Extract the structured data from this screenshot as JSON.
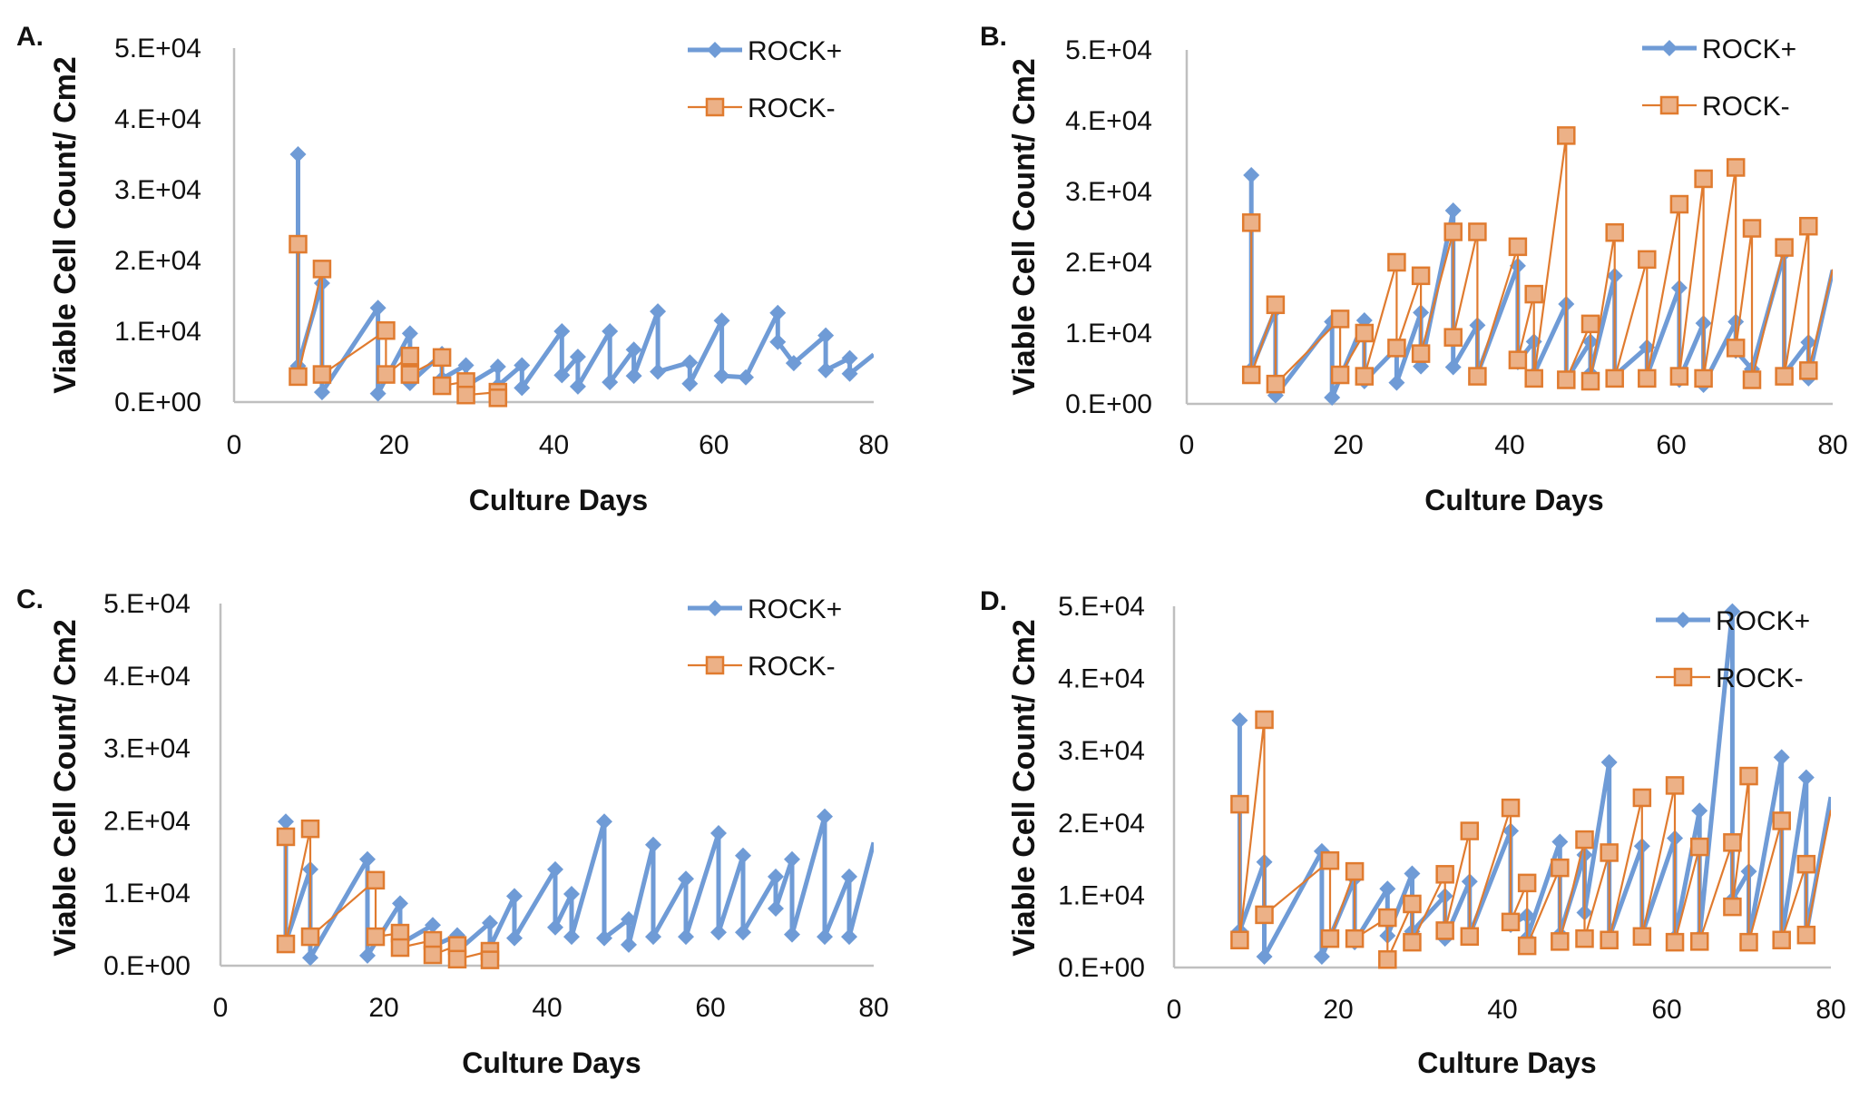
{
  "figure": {
    "colors": {
      "rock_plus": "#6f9bd6",
      "rock_minus": "#e07b2f",
      "rock_minus_fill": "#ecb187",
      "axis": "#bfbfbf"
    }
  },
  "chart_data": [
    {
      "type": "line",
      "panel": "A.",
      "title": "",
      "xlabel": "Culture Days",
      "ylabel": "Viable Cell Count/ Cm2",
      "xlim": [
        0,
        80
      ],
      "ylim": [
        0,
        50000
      ],
      "xticks": [
        "0",
        "20",
        "40",
        "60",
        "80"
      ],
      "yticks": [
        "0.E+00",
        "1.E+04",
        "2.E+04",
        "3.E+04",
        "4.E+04",
        "5.E+04"
      ],
      "grid": false,
      "legend": {
        "position": "top-right",
        "entries": [
          "ROCK+",
          "ROCK-"
        ]
      },
      "series": [
        {
          "name": "ROCK+",
          "marker": "diamond",
          "x": [
            8,
            8,
            11,
            11,
            18,
            18,
            22,
            22,
            26,
            26,
            29,
            29,
            33,
            33,
            36,
            36,
            41,
            41,
            43,
            43,
            47,
            47,
            50,
            50,
            53,
            53,
            57,
            57,
            61,
            61,
            64,
            68,
            68,
            70,
            74,
            74,
            77,
            77,
            80
          ],
          "y": [
            35000,
            5100,
            16800,
            1400,
            13300,
            1200,
            9700,
            2700,
            6800,
            3300,
            5200,
            2300,
            5000,
            2300,
            5200,
            2000,
            10000,
            3800,
            6400,
            2200,
            10000,
            2800,
            7400,
            3700,
            12800,
            4300,
            5600,
            2600,
            11500,
            3700,
            3500,
            12600,
            8500,
            5500,
            9400,
            4500,
            6200,
            4000,
            6700
          ]
        },
        {
          "name": "ROCK-",
          "marker": "square",
          "x": [
            8,
            8,
            11,
            11,
            19,
            19,
            22,
            22,
            26,
            26,
            29,
            29,
            33,
            33
          ],
          "y": [
            22300,
            3600,
            18800,
            3900,
            10100,
            3900,
            6500,
            3900,
            6300,
            2300,
            2900,
            1000,
            1400,
            600
          ]
        }
      ]
    },
    {
      "type": "line",
      "panel": "B.",
      "title": "",
      "xlabel": "Culture Days",
      "ylabel": "Viable Cell Count/ Cm2",
      "xlim": [
        0,
        80
      ],
      "ylim": [
        0,
        50000
      ],
      "xticks": [
        "0",
        "20",
        "40",
        "60",
        "80"
      ],
      "yticks": [
        "0.E+00",
        "1.E+04",
        "2.E+04",
        "3.E+04",
        "4.E+04",
        "5.E+04"
      ],
      "grid": false,
      "legend": {
        "position": "top-right",
        "entries": [
          "ROCK+",
          "ROCK-"
        ]
      },
      "series": [
        {
          "name": "ROCK+",
          "marker": "diamond",
          "x": [
            8,
            8,
            11,
            11,
            18,
            18,
            22,
            22,
            26,
            26,
            29,
            29,
            33,
            33,
            36,
            36,
            41,
            41,
            43,
            43,
            47,
            47,
            50,
            50,
            53,
            53,
            57,
            57,
            61,
            61,
            64,
            64,
            68,
            68,
            70,
            74,
            74,
            77,
            77,
            80
          ],
          "y": [
            32300,
            4900,
            13300,
            1200,
            11600,
            900,
            11800,
            3200,
            7900,
            3000,
            12900,
            5300,
            27300,
            5200,
            11100,
            4200,
            19500,
            5900,
            8800,
            4200,
            14100,
            3400,
            8800,
            4300,
            18100,
            4000,
            8000,
            4000,
            16400,
            3400,
            11400,
            2700,
            11600,
            7500,
            4900,
            21300,
            4200,
            8700,
            3600,
            18900
          ]
        },
        {
          "name": "ROCK-",
          "marker": "square",
          "x": [
            8,
            8,
            11,
            11,
            19,
            19,
            22,
            22,
            26,
            26,
            29,
            29,
            33,
            33,
            36,
            36,
            41,
            41,
            43,
            43,
            47,
            47,
            50,
            50,
            53,
            53,
            57,
            57,
            61,
            61,
            64,
            64,
            68,
            68,
            70,
            70,
            74,
            74,
            77,
            77,
            80
          ],
          "y": [
            25600,
            4100,
            14000,
            2800,
            12000,
            4100,
            10000,
            3900,
            20000,
            7900,
            18100,
            7100,
            24300,
            9400,
            24300,
            3900,
            22200,
            6200,
            15500,
            3600,
            37900,
            3400,
            11300,
            3200,
            24200,
            3600,
            20400,
            3600,
            28200,
            3900,
            31800,
            3600,
            33400,
            7900,
            24800,
            3400,
            22100,
            3900,
            25100,
            4700,
            19000
          ]
        }
      ]
    },
    {
      "type": "line",
      "panel": "C.",
      "title": "",
      "xlabel": "Culture  Days",
      "ylabel": "Viable  Cell  Count/  Cm2",
      "xlim": [
        0,
        80
      ],
      "ylim": [
        0,
        50000
      ],
      "xticks": [
        "0",
        "20",
        "40",
        "60",
        "80"
      ],
      "yticks": [
        "0.E+00",
        "1.E+04",
        "2.E+04",
        "3.E+04",
        "4.E+04",
        "5.E+04"
      ],
      "grid": false,
      "legend": {
        "position": "top-right",
        "entries": [
          "ROCK+",
          "ROCK-"
        ]
      },
      "series": [
        {
          "name": "ROCK+",
          "marker": "diamond",
          "x": [
            8,
            8,
            11,
            11,
            18,
            18,
            22,
            22,
            26,
            26,
            29,
            29,
            33,
            33,
            36,
            36,
            41,
            41,
            43,
            43,
            47,
            47,
            50,
            50,
            53,
            53,
            57,
            57,
            61,
            61,
            64,
            64,
            68,
            68,
            70,
            70,
            74,
            74,
            77,
            77,
            80
          ],
          "y": [
            19900,
            3300,
            13300,
            1100,
            14700,
            1400,
            8600,
            3000,
            5600,
            2700,
            4200,
            2000,
            5900,
            2500,
            9600,
            3800,
            13300,
            5300,
            9900,
            4000,
            19900,
            3800,
            6400,
            2900,
            16700,
            4000,
            12000,
            4000,
            18300,
            4600,
            15200,
            4600,
            12300,
            7900,
            14700,
            4300,
            20600,
            4000,
            12300,
            4000,
            17000
          ]
        },
        {
          "name": "ROCK-",
          "marker": "square",
          "x": [
            8,
            8,
            11,
            11,
            19,
            19,
            22,
            22,
            26,
            26,
            29,
            29,
            33,
            33
          ],
          "y": [
            17800,
            3000,
            18900,
            4000,
            11800,
            4000,
            4500,
            2500,
            3500,
            1500,
            2800,
            900,
            2000,
            800
          ]
        }
      ]
    },
    {
      "type": "line",
      "panel": "D.",
      "title": "",
      "xlabel": "Culture  Days",
      "ylabel": "Viable  Cell  Count/  Cm2",
      "xlim": [
        0,
        80
      ],
      "ylim": [
        0,
        50000
      ],
      "xticks": [
        "0",
        "20",
        "40",
        "60",
        "80"
      ],
      "yticks": [
        "0.E+00",
        "1.E+04",
        "2.E+04",
        "3.E+04",
        "4.E+04",
        "5.E+04"
      ],
      "grid": false,
      "legend": {
        "position": "top-right",
        "entries": [
          "ROCK+",
          "ROCK-"
        ]
      },
      "series": [
        {
          "name": "ROCK+",
          "marker": "diamond",
          "x": [
            8,
            8,
            11,
            11,
            18,
            18,
            22,
            22,
            26,
            26,
            29,
            29,
            33,
            33,
            36,
            36,
            41,
            41,
            43,
            43,
            47,
            47,
            50,
            50,
            53,
            53,
            57,
            57,
            61,
            61,
            64,
            64,
            68,
            68,
            70,
            70,
            74,
            74,
            77,
            77,
            80
          ],
          "y": [
            34200,
            5100,
            14600,
            1500,
            16100,
            1500,
            12300,
            3500,
            10900,
            4400,
            13000,
            5000,
            9900,
            4000,
            11900,
            4500,
            18900,
            5900,
            7200,
            4100,
            17400,
            4600,
            15600,
            7600,
            28400,
            4200,
            16800,
            4600,
            17900,
            4200,
            21700,
            4200,
            49300,
            9400,
            13300,
            3800,
            29100,
            4000,
            26300,
            4600,
            23600
          ]
        },
        {
          "name": "ROCK-",
          "marker": "square",
          "x": [
            8,
            8,
            11,
            11,
            19,
            19,
            22,
            22,
            26,
            26,
            29,
            29,
            33,
            33,
            36,
            36,
            41,
            41,
            43,
            43,
            47,
            47,
            50,
            50,
            53,
            53,
            57,
            57,
            61,
            61,
            64,
            64,
            68,
            68,
            70,
            70,
            74,
            74,
            77,
            77,
            80
          ],
          "y": [
            22600,
            3800,
            34300,
            7300,
            14800,
            4000,
            13300,
            4000,
            6900,
            1100,
            8800,
            3500,
            12900,
            5100,
            18900,
            4300,
            22100,
            6300,
            11700,
            3000,
            13800,
            3600,
            17700,
            4000,
            15900,
            3800,
            23500,
            4300,
            25200,
            3500,
            16700,
            3600,
            17300,
            8400,
            26500,
            3500,
            20300,
            3800,
            14300,
            4500,
            21800
          ]
        }
      ]
    }
  ]
}
